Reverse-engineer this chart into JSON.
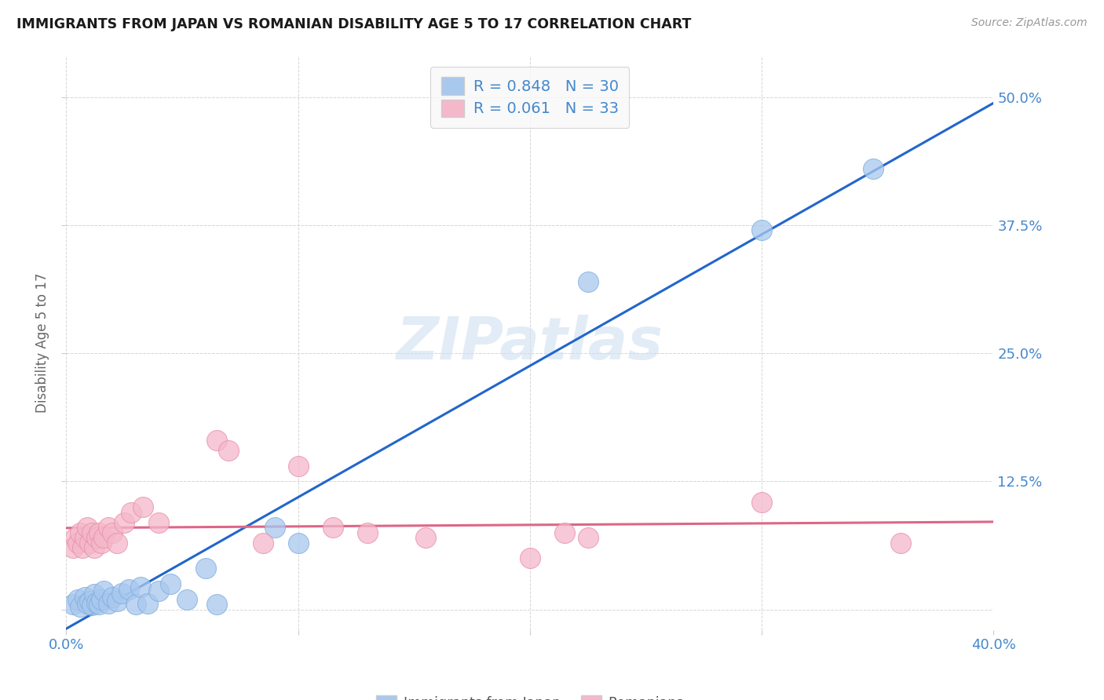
{
  "title": "IMMIGRANTS FROM JAPAN VS ROMANIAN DISABILITY AGE 5 TO 17 CORRELATION CHART",
  "source": "Source: ZipAtlas.com",
  "ylabel": "Disability Age 5 to 17",
  "xlim": [
    0.0,
    0.4
  ],
  "ylim": [
    -0.02,
    0.54
  ],
  "x_ticks": [
    0.0,
    0.1,
    0.2,
    0.3,
    0.4
  ],
  "x_tick_labels": [
    "0.0%",
    "",
    "",
    "",
    "40.0%"
  ],
  "y_ticks": [
    0.0,
    0.125,
    0.25,
    0.375,
    0.5
  ],
  "y_tick_labels_right": [
    "",
    "12.5%",
    "25.0%",
    "37.5%",
    "50.0%"
  ],
  "japan_R": 0.848,
  "japan_N": 30,
  "romanian_R": 0.061,
  "romanian_N": 33,
  "japan_color": "#a8c8ee",
  "japan_edge_color": "#7faedd",
  "romanian_color": "#f5b8cb",
  "romanian_edge_color": "#e890a8",
  "japan_line_color": "#2266cc",
  "romanian_line_color": "#dd6688",
  "japan_scatter_x": [
    0.003,
    0.005,
    0.006,
    0.008,
    0.009,
    0.01,
    0.011,
    0.012,
    0.013,
    0.014,
    0.015,
    0.016,
    0.018,
    0.02,
    0.022,
    0.024,
    0.027,
    0.03,
    0.032,
    0.035,
    0.04,
    0.045,
    0.052,
    0.06,
    0.065,
    0.09,
    0.1,
    0.225,
    0.3,
    0.348
  ],
  "japan_scatter_y": [
    0.005,
    0.01,
    0.003,
    0.012,
    0.006,
    0.008,
    0.004,
    0.015,
    0.007,
    0.005,
    0.01,
    0.018,
    0.006,
    0.012,
    0.008,
    0.016,
    0.02,
    0.005,
    0.022,
    0.006,
    0.018,
    0.025,
    0.01,
    0.04,
    0.005,
    0.08,
    0.065,
    0.32,
    0.37,
    0.43
  ],
  "romanian_scatter_x": [
    0.003,
    0.004,
    0.005,
    0.006,
    0.007,
    0.008,
    0.009,
    0.01,
    0.011,
    0.012,
    0.013,
    0.014,
    0.015,
    0.016,
    0.018,
    0.02,
    0.022,
    0.025,
    0.028,
    0.033,
    0.04,
    0.065,
    0.07,
    0.085,
    0.1,
    0.115,
    0.13,
    0.155,
    0.2,
    0.215,
    0.225,
    0.3,
    0.36
  ],
  "romanian_scatter_y": [
    0.06,
    0.07,
    0.065,
    0.075,
    0.06,
    0.07,
    0.08,
    0.065,
    0.075,
    0.06,
    0.07,
    0.075,
    0.065,
    0.07,
    0.08,
    0.075,
    0.065,
    0.085,
    0.095,
    0.1,
    0.085,
    0.165,
    0.155,
    0.065,
    0.14,
    0.08,
    0.075,
    0.07,
    0.05,
    0.075,
    0.07,
    0.105,
    0.065
  ],
  "watermark": "ZIPatlas",
  "background_color": "#ffffff",
  "grid_color": "#cccccc",
  "tick_color": "#4488cc",
  "legend_face_color": "#f8f8f8",
  "legend_edge_color": "#cccccc"
}
